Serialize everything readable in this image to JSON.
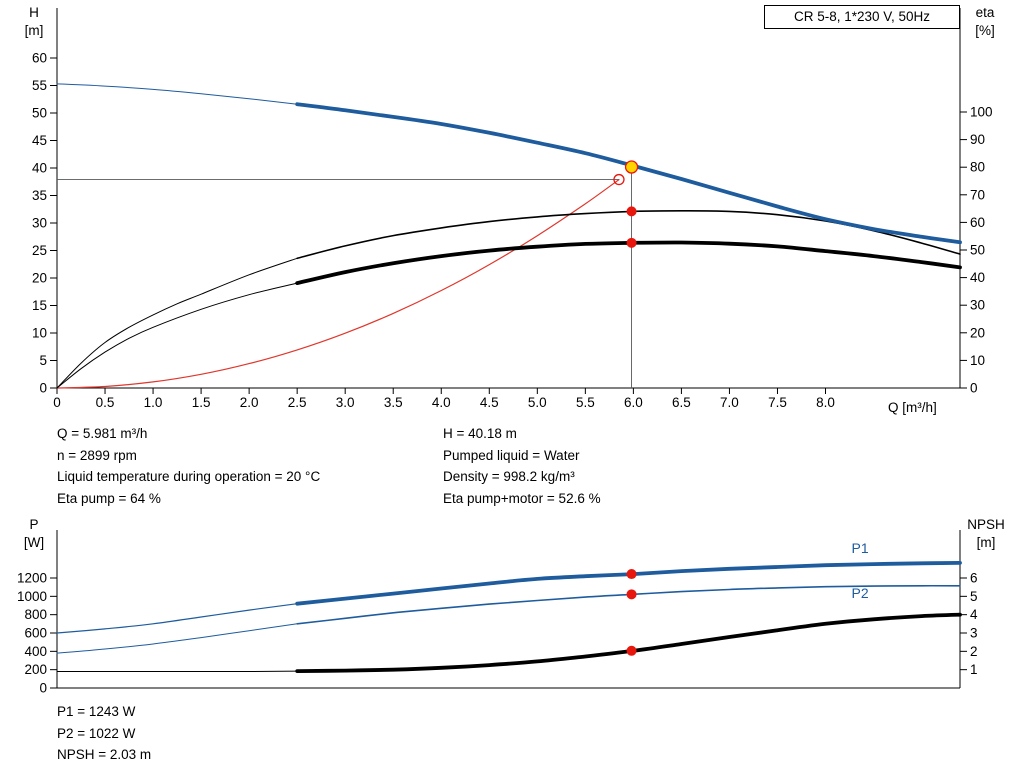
{
  "header": {
    "title_box": "CR 5-8, 1*230 V, 50Hz"
  },
  "axis_titles": {
    "h1": "H",
    "h2": "[m]",
    "eta1": "eta",
    "eta2": "[%]",
    "q": "Q [m³/h]",
    "p1": "P",
    "p2": "[W]",
    "npsh1": "NPSH",
    "npsh2": "[m]"
  },
  "info_top_left": [
    "Q = 5.981 m³/h",
    "n = 2899 rpm",
    "Liquid temperature during operation = 20 °C",
    "Eta pump = 64 %"
  ],
  "info_top_right": [
    "H = 40.18 m",
    "Pumped liquid = Water",
    "Density = 998.2 kg/m³",
    "Eta pump+motor = 52.6 %"
  ],
  "info_bottom": [
    "P1 = 1243 W",
    "P2 = 1022 W",
    "NPSH = 2.03 m"
  ],
  "colors": {
    "curve_blue": "#1e5c9e",
    "curve_black": "#000000",
    "curve_red": "#e0362c",
    "marker_red": "#e8170d",
    "marker_yellow": "#ffd400",
    "ref_line": "#55585b",
    "axis": "#000000"
  },
  "chart_data": [
    {
      "name": "qh-eta-chart",
      "type": "line",
      "title": "CR 5-8, 1*230 V, 50Hz",
      "x_axis": {
        "label": "Q [m³/h]",
        "min": 0,
        "max": 9.4,
        "tick_values": [
          0,
          0.5,
          1,
          1.5,
          2,
          2.5,
          3,
          3.5,
          4,
          4.5,
          5,
          5.5,
          6,
          6.5,
          7,
          7.5,
          8
        ],
        "tick_labels": [
          "0",
          "0.5",
          "1.0",
          "1.5",
          "2.0",
          "2.5",
          "3.0",
          "3.5",
          "4.0",
          "4.5",
          "5.0",
          "5.5",
          "6.0",
          "6.5",
          "7.0",
          "7.5",
          "8.0"
        ]
      },
      "y_left": {
        "label": "H [m]",
        "min": 0,
        "max": 60,
        "ticks": [
          0,
          5,
          10,
          15,
          20,
          25,
          30,
          35,
          40,
          45,
          50,
          55,
          60
        ]
      },
      "y_right": {
        "label": "eta [%]",
        "min": 0,
        "max": 100,
        "ticks": [
          0,
          10,
          20,
          30,
          40,
          50,
          60,
          70,
          80,
          90,
          100
        ]
      },
      "series": [
        {
          "name": "duty-parabola",
          "axis": "left",
          "color": "#e0362c",
          "thin_width": 1.2,
          "thick_width": 1.2,
          "thick_from": null,
          "points": [
            [
              0,
              0
            ],
            [
              0.5,
              0.28
            ],
            [
              1,
              1.11
            ],
            [
              1.5,
              2.49
            ],
            [
              2,
              4.43
            ],
            [
              2.5,
              6.92
            ],
            [
              3,
              9.97
            ],
            [
              3.5,
              13.57
            ],
            [
              4,
              17.72
            ],
            [
              4.5,
              22.43
            ],
            [
              5,
              27.69
            ],
            [
              5.5,
              33.5
            ],
            [
              5.85,
              37.9
            ]
          ]
        },
        {
          "name": "eta-pump",
          "axis": "right",
          "color": "#000000",
          "thin_width": 1,
          "thick_width": 1.6,
          "thick_from": 2.5,
          "points": [
            [
              0,
              0
            ],
            [
              0.25,
              9
            ],
            [
              0.5,
              16.5
            ],
            [
              0.75,
              22
            ],
            [
              1,
              26.5
            ],
            [
              1.25,
              30.5
            ],
            [
              1.5,
              34
            ],
            [
              2,
              41
            ],
            [
              2.5,
              47
            ],
            [
              3,
              51.5
            ],
            [
              3.5,
              55.2
            ],
            [
              4,
              58
            ],
            [
              4.5,
              60.3
            ],
            [
              5,
              62
            ],
            [
              5.5,
              63.2
            ],
            [
              6,
              64
            ],
            [
              6.5,
              64.2
            ],
            [
              7,
              64
            ],
            [
              7.5,
              62.8
            ],
            [
              8,
              60.5
            ],
            [
              8.5,
              57
            ],
            [
              9,
              52.5
            ],
            [
              9.4,
              48.5
            ]
          ]
        },
        {
          "name": "eta-pump-motor",
          "axis": "right",
          "color": "#000000",
          "thin_width": 1,
          "thick_width": 3.8,
          "thick_from": 2.5,
          "points": [
            [
              0,
              0
            ],
            [
              0.25,
              7
            ],
            [
              0.5,
              13
            ],
            [
              0.75,
              18
            ],
            [
              1,
              22
            ],
            [
              1.5,
              28.5
            ],
            [
              2,
              33.8
            ],
            [
              2.5,
              38
            ],
            [
              3,
              42
            ],
            [
              3.5,
              45.2
            ],
            [
              4,
              47.8
            ],
            [
              4.5,
              49.8
            ],
            [
              5,
              51.2
            ],
            [
              5.5,
              52.2
            ],
            [
              6,
              52.6
            ],
            [
              6.5,
              52.7
            ],
            [
              7,
              52.3
            ],
            [
              7.5,
              51.3
            ],
            [
              8,
              49.6
            ],
            [
              8.5,
              47.8
            ],
            [
              9,
              45.6
            ],
            [
              9.4,
              43.7
            ]
          ]
        },
        {
          "name": "pump-head",
          "axis": "left",
          "color": "#1e5c9e",
          "thin_width": 1,
          "thick_width": 3.8,
          "thick_from": 2.5,
          "points": [
            [
              0,
              55.3
            ],
            [
              0.5,
              54.9
            ],
            [
              1,
              54.3
            ],
            [
              1.5,
              53.5
            ],
            [
              2,
              52.6
            ],
            [
              2.5,
              51.6
            ],
            [
              3,
              50.5
            ],
            [
              3.5,
              49.3
            ],
            [
              4,
              48.0
            ],
            [
              4.5,
              46.4
            ],
            [
              5,
              44.6
            ],
            [
              5.5,
              42.7
            ],
            [
              6,
              40.4
            ],
            [
              6.5,
              38.0
            ],
            [
              7,
              35.5
            ],
            [
              7.5,
              33.0
            ],
            [
              8,
              30.7
            ],
            [
              8.5,
              28.9
            ],
            [
              9,
              27.5
            ],
            [
              9.4,
              26.5
            ]
          ]
        }
      ],
      "ref_lines": [
        {
          "type": "v",
          "x": 5.981,
          "y0": 0,
          "y1": 40.18
        },
        {
          "type": "h",
          "y": 37.9,
          "x0": 0,
          "x1": 5.85
        }
      ],
      "markers": [
        {
          "name": "duty-request-point",
          "style": "open-circle",
          "axis": "left",
          "x": 5.85,
          "y": 37.9
        },
        {
          "name": "operating-point",
          "style": "yellow-dot",
          "axis": "left",
          "x": 5.981,
          "y": 40.18
        },
        {
          "name": "eta-pump-point",
          "style": "red-dot",
          "axis": "right",
          "x": 5.981,
          "y": 64
        },
        {
          "name": "eta-pump-motor-point",
          "style": "red-dot",
          "axis": "right",
          "x": 5.981,
          "y": 52.6
        }
      ],
      "labels": []
    },
    {
      "name": "power-npsh-chart",
      "type": "line",
      "title": "",
      "x_axis": {
        "label": "",
        "min": 0,
        "max": 9.4,
        "tick_values": [],
        "tick_labels": []
      },
      "y_left": {
        "label": "P [W]",
        "min": 0,
        "max": 1200,
        "ticks": [
          0,
          200,
          400,
          600,
          800,
          1000,
          1200
        ]
      },
      "y_right": {
        "label": "NPSH [m]",
        "min": 0,
        "max": 6,
        "ticks": [
          1,
          2,
          3,
          4,
          5,
          6
        ]
      },
      "series": [
        {
          "name": "power-p1",
          "axis": "left",
          "color": "#1e5c9e",
          "thin_width": 1.2,
          "thick_width": 3.8,
          "thick_from": 2.5,
          "points": [
            [
              0,
              600
            ],
            [
              0.5,
              645
            ],
            [
              1,
              700
            ],
            [
              1.5,
              775
            ],
            [
              2,
              850
            ],
            [
              2.5,
              920
            ],
            [
              3,
              975
            ],
            [
              3.5,
              1030
            ],
            [
              4,
              1085
            ],
            [
              4.5,
              1140
            ],
            [
              5,
              1190
            ],
            [
              5.5,
              1220
            ],
            [
              6,
              1243
            ],
            [
              6.5,
              1275
            ],
            [
              7,
              1300
            ],
            [
              7.5,
              1320
            ],
            [
              8,
              1340
            ],
            [
              8.5,
              1352
            ],
            [
              9,
              1360
            ],
            [
              9.4,
              1365
            ]
          ]
        },
        {
          "name": "power-p2",
          "axis": "left",
          "color": "#1e5c9e",
          "thin_width": 1,
          "thick_width": 1.6,
          "thick_from": 2.5,
          "points": [
            [
              0,
              380
            ],
            [
              0.5,
              425
            ],
            [
              1,
              480
            ],
            [
              1.5,
              550
            ],
            [
              2,
              625
            ],
            [
              2.5,
              700
            ],
            [
              3,
              760
            ],
            [
              3.5,
              820
            ],
            [
              4,
              870
            ],
            [
              4.5,
              915
            ],
            [
              5,
              955
            ],
            [
              5.5,
              992
            ],
            [
              6,
              1022
            ],
            [
              6.5,
              1052
            ],
            [
              7,
              1075
            ],
            [
              7.5,
              1092
            ],
            [
              8,
              1105
            ],
            [
              8.5,
              1112
            ],
            [
              9,
              1115
            ],
            [
              9.4,
              1115
            ]
          ]
        },
        {
          "name": "npsh",
          "axis": "right",
          "color": "#000000",
          "thin_width": 1,
          "thick_width": 3.8,
          "thick_from": 2.5,
          "points": [
            [
              0,
              0.9
            ],
            [
              1,
              0.9
            ],
            [
              2,
              0.9
            ],
            [
              2.5,
              0.92
            ],
            [
              3,
              0.95
            ],
            [
              3.5,
              1.0
            ],
            [
              4,
              1.1
            ],
            [
              4.5,
              1.25
            ],
            [
              5,
              1.45
            ],
            [
              5.5,
              1.72
            ],
            [
              6,
              2.03
            ],
            [
              6.5,
              2.4
            ],
            [
              7,
              2.78
            ],
            [
              7.5,
              3.15
            ],
            [
              8,
              3.5
            ],
            [
              8.5,
              3.75
            ],
            [
              9,
              3.92
            ],
            [
              9.4,
              4.0
            ]
          ]
        }
      ],
      "ref_lines": [],
      "markers": [
        {
          "name": "p1-point",
          "style": "red-dot",
          "axis": "left",
          "x": 5.981,
          "y": 1243
        },
        {
          "name": "p2-point",
          "style": "red-dot",
          "axis": "left",
          "x": 5.981,
          "y": 1022
        },
        {
          "name": "npsh-point",
          "style": "red-dot",
          "axis": "right",
          "x": 5.981,
          "y": 2.03
        }
      ],
      "labels": [
        {
          "text": "P1",
          "axis": "left",
          "x": 8.36,
          "y": 1472
        },
        {
          "text": "P2",
          "axis": "left",
          "x": 8.36,
          "y": 980
        }
      ]
    }
  ]
}
